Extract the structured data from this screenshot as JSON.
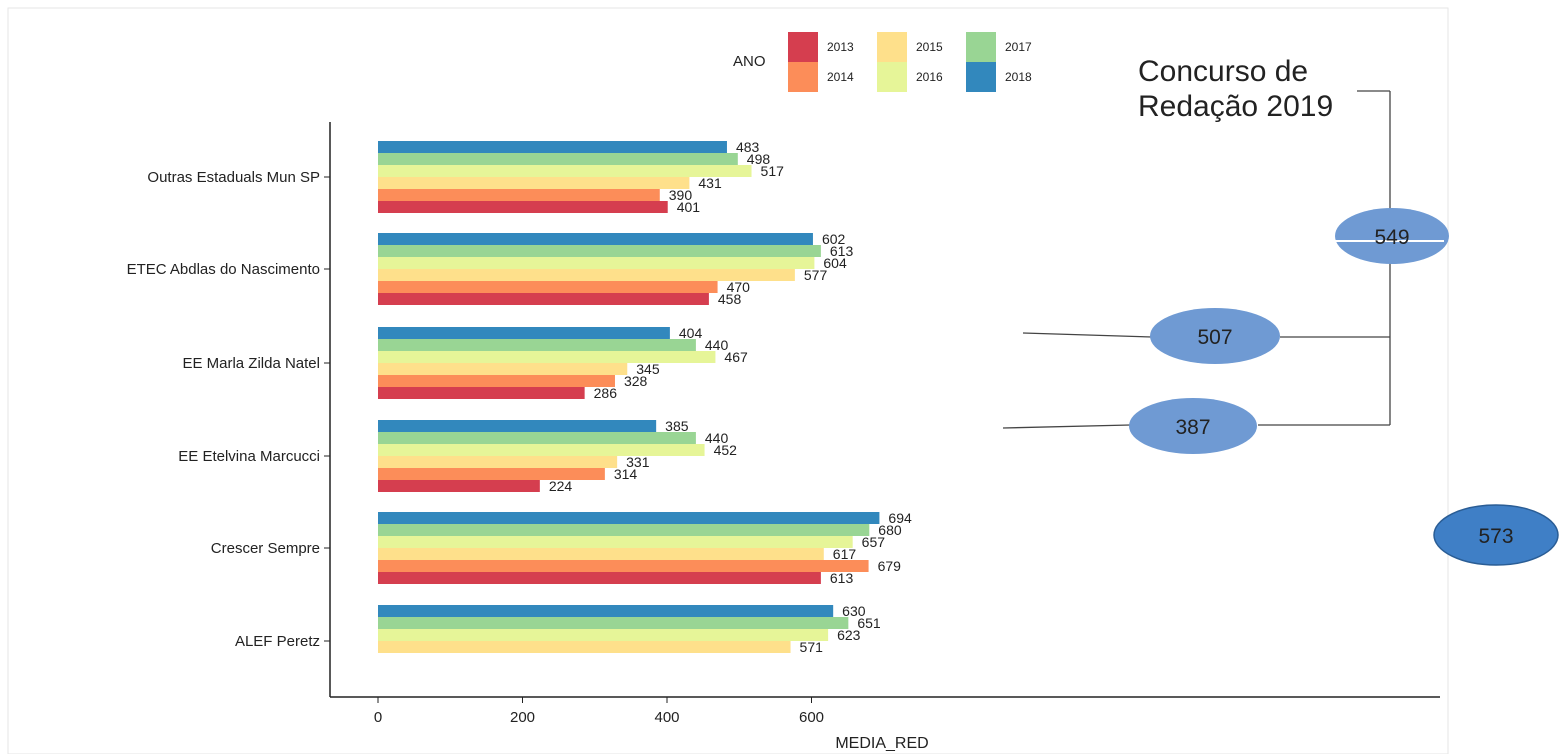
{
  "chart_data": {
    "type": "bar",
    "orientation": "horizontal",
    "xlabel": "MEDIA_RED",
    "ylabel": "",
    "xlim": [
      0,
      720
    ],
    "x_ticks": [
      0,
      200,
      400,
      600
    ],
    "legend": {
      "title": "ANO",
      "placement": "top-center",
      "entries": [
        {
          "label": "2013",
          "color": "#d53e4f"
        },
        {
          "label": "2014",
          "color": "#fc8d59"
        },
        {
          "label": "2015",
          "color": "#fee08b"
        },
        {
          "label": "2016",
          "color": "#e6f598"
        },
        {
          "label": "2017",
          "color": "#99d594"
        },
        {
          "label": "2018",
          "color": "#3288bd"
        }
      ]
    },
    "categories": [
      "Outras Estaduals Mun SP",
      "ETEC Abdlas do Nascimento",
      "EE Marla Zilda Natel",
      "EE Etelvina Marcucci",
      "Crescer Sempre",
      "ALEF Peretz"
    ],
    "series": [
      {
        "name": "2013",
        "values": [
          401,
          458,
          286,
          224,
          613,
          null
        ]
      },
      {
        "name": "2014",
        "values": [
          390,
          470,
          328,
          314,
          679,
          null
        ]
      },
      {
        "name": "2015",
        "values": [
          431,
          577,
          345,
          331,
          617,
          571
        ]
      },
      {
        "name": "2016",
        "values": [
          517,
          604,
          467,
          452,
          657,
          623
        ]
      },
      {
        "name": "2017",
        "values": [
          498,
          613,
          440,
          440,
          680,
          651
        ]
      },
      {
        "name": "2018",
        "values": [
          483,
          602,
          404,
          385,
          694,
          630
        ]
      }
    ]
  },
  "annotations": {
    "title_line1": "Concurso de",
    "title_line2": "Redação 2019",
    "bubbles": [
      {
        "label": "549",
        "target": "ETEC Abdlas do Nascimento",
        "color": "#6f9ad3"
      },
      {
        "label": "507",
        "target": "EE Marla Zilda Natel",
        "color": "#6f9ad3"
      },
      {
        "label": "387",
        "target": "EE Etelvina Marcucci",
        "color": "#6f9ad3"
      },
      {
        "label": "573",
        "target": "Crescer Sempre",
        "color": "#3f7fc6"
      }
    ]
  }
}
